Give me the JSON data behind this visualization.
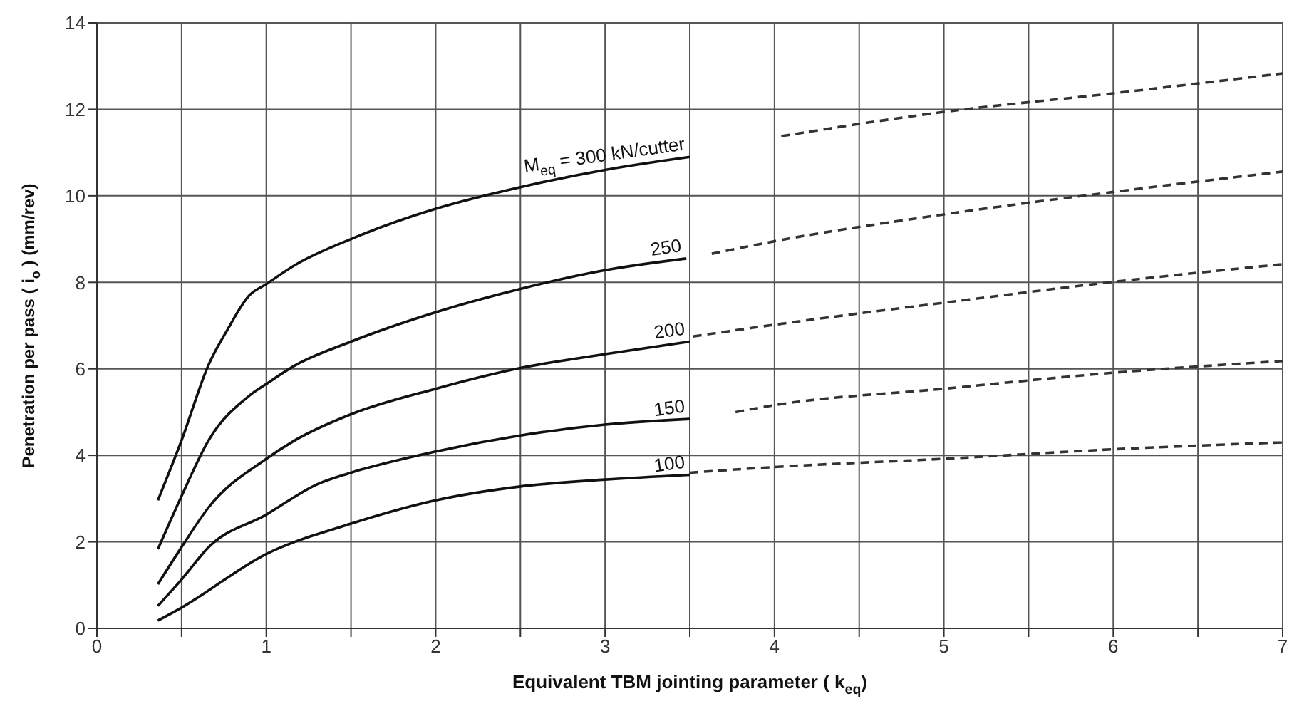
{
  "chart_data": {
    "type": "line",
    "xlabel": "Equivalent TBM jointing parameter  ( k$_{eq}$)",
    "ylabel": "Penetration per pass  ( i$_{o}$ )  (mm/rev)",
    "xlim": [
      0,
      7
    ],
    "xticks": [
      0,
      {
        "value": 0.5,
        "label": null
      },
      1,
      {
        "value": 1.5,
        "label": null
      },
      2,
      {
        "value": 2.5,
        "label": null
      },
      3,
      {
        "value": 3.5,
        "label": null
      },
      4,
      {
        "value": 4.5,
        "label": null
      },
      5,
      {
        "value": 5.5,
        "label": null
      },
      6,
      {
        "value": 6.5,
        "label": null
      },
      7
    ],
    "ylim": [
      0,
      14
    ],
    "yticks": [
      0,
      2,
      4,
      6,
      8,
      10,
      12,
      14
    ],
    "grid": true,
    "series": [
      {
        "name": "M$_{eq}$ = 300 kN/cutter",
        "color": "#111111",
        "line_style": "solid",
        "x": [
          0.36,
          0.5,
          0.66,
          0.77,
          0.9,
          1.0,
          1.17,
          1.5,
          2.0,
          2.5,
          3.0,
          3.5
        ],
        "values": [
          2.96,
          4.35,
          6.1,
          6.9,
          7.7,
          7.96,
          8.4,
          9.0,
          9.7,
          10.2,
          10.6,
          10.9
        ]
      },
      {
        "color": "#333333",
        "line_style": "dashed",
        "x": [
          4.04,
          5,
          6,
          7
        ],
        "values": [
          11.38,
          11.94,
          12.37,
          12.83
        ]
      },
      {
        "name": "250",
        "color": "#111111",
        "line_style": "solid",
        "x": [
          0.36,
          0.5,
          0.66,
          0.9,
          1.0,
          1.17,
          1.5,
          2.0,
          2.5,
          3.0,
          3.48
        ],
        "values": [
          1.83,
          3.06,
          4.35,
          5.38,
          5.65,
          6.08,
          6.63,
          7.31,
          7.85,
          8.28,
          8.55
        ]
      },
      {
        "color": "#333333",
        "line_style": "dashed",
        "x": [
          3.63,
          4,
          5,
          6,
          7
        ],
        "values": [
          8.66,
          8.95,
          9.57,
          10.09,
          10.56
        ]
      },
      {
        "name": "200",
        "color": "#111111",
        "line_style": "solid",
        "x": [
          0.36,
          0.5,
          0.66,
          1.0,
          1.17,
          1.5,
          2.0,
          2.5,
          3.0,
          3.5
        ],
        "values": [
          1.02,
          1.88,
          2.8,
          3.92,
          4.35,
          4.95,
          5.54,
          6.02,
          6.34,
          6.63
        ]
      },
      {
        "color": "#333333",
        "line_style": "dashed",
        "x": [
          3.52,
          4,
          5,
          6,
          7
        ],
        "values": [
          6.75,
          7.02,
          7.53,
          8.01,
          8.42
        ]
      },
      {
        "name": "150",
        "color": "#111111",
        "line_style": "solid",
        "x": [
          0.36,
          0.5,
          0.66,
          1.0,
          1.3,
          1.5,
          2.0,
          2.5,
          3.0,
          3.5
        ],
        "values": [
          0.52,
          1.13,
          1.88,
          2.63,
          3.33,
          3.6,
          4.09,
          4.46,
          4.71,
          4.84
        ]
      },
      {
        "color": "#333333",
        "line_style": "dashed",
        "x": [
          3.77,
          4,
          5,
          6,
          7
        ],
        "values": [
          5.0,
          5.16,
          5.54,
          5.91,
          6.18
        ]
      },
      {
        "name": "100",
        "color": "#111111",
        "line_style": "solid",
        "x": [
          0.36,
          0.5,
          1.0,
          1.5,
          2.0,
          2.5,
          3.0,
          3.5
        ],
        "values": [
          0.18,
          0.48,
          1.72,
          2.42,
          2.96,
          3.28,
          3.44,
          3.55
        ]
      },
      {
        "color": "#333333",
        "line_style": "dashed",
        "x": [
          3.5,
          4,
          5,
          6,
          7
        ],
        "values": [
          3.6,
          3.73,
          3.92,
          4.14,
          4.3
        ]
      }
    ]
  }
}
